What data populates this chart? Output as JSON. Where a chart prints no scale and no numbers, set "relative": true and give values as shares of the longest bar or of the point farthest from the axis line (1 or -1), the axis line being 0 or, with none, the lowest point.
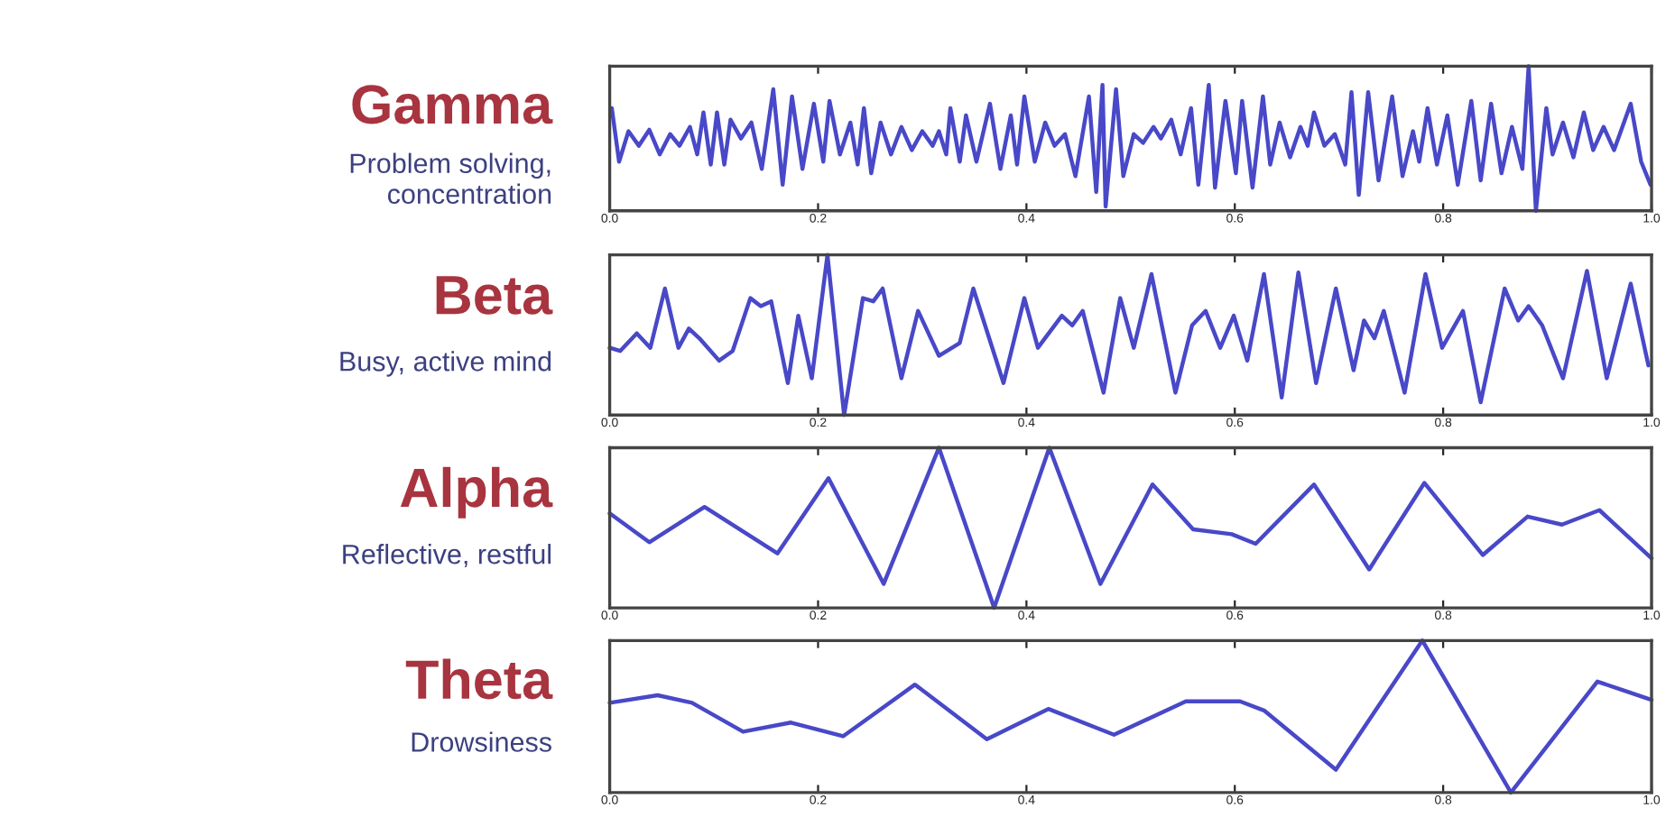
{
  "chart_data": [
    {
      "type": "line",
      "title": "Gamma",
      "subtitle": "Problem solving,\nconcentration",
      "relative": true,
      "tick_labels": "x",
      "xlim": [
        0,
        1
      ],
      "xticks": [
        {
          "value": 0,
          "label": "0.0"
        },
        {
          "value": 0.2,
          "label": "0.2"
        },
        {
          "value": 0.4,
          "label": "0.4"
        },
        {
          "value": 0.6,
          "label": "0.6"
        },
        {
          "value": 0.8,
          "label": "0.8"
        },
        {
          "value": 1,
          "label": "1.0"
        }
      ],
      "x": [
        0.002,
        0.009,
        0.018,
        0.028,
        0.038,
        0.048,
        0.058,
        0.067,
        0.077,
        0.084,
        0.09,
        0.097,
        0.103,
        0.11,
        0.116,
        0.126,
        0.136,
        0.146,
        0.157,
        0.166,
        0.175,
        0.185,
        0.196,
        0.205,
        0.211,
        0.221,
        0.231,
        0.238,
        0.244,
        0.251,
        0.26,
        0.27,
        0.28,
        0.29,
        0.3,
        0.31,
        0.316,
        0.323,
        0.327,
        0.336,
        0.342,
        0.352,
        0.365,
        0.375,
        0.385,
        0.391,
        0.398,
        0.408,
        0.418,
        0.427,
        0.437,
        0.447,
        0.46,
        0.467,
        0.473,
        0.476,
        0.486,
        0.493,
        0.503,
        0.512,
        0.522,
        0.529,
        0.539,
        0.548,
        0.558,
        0.565,
        0.575,
        0.581,
        0.591,
        0.601,
        0.607,
        0.617,
        0.627,
        0.634,
        0.643,
        0.653,
        0.663,
        0.67,
        0.676,
        0.686,
        0.696,
        0.706,
        0.712,
        0.719,
        0.728,
        0.738,
        0.751,
        0.761,
        0.771,
        0.777,
        0.785,
        0.794,
        0.804,
        0.814,
        0.827,
        0.836,
        0.846,
        0.856,
        0.866,
        0.876,
        0.882,
        0.889,
        0.899,
        0.905,
        0.915,
        0.925,
        0.935,
        0.944,
        0.954,
        0.964,
        0.98,
        0.99,
        0.999
      ],
      "series": [
        {
          "color": "#4848c8",
          "values": [
            0.71,
            0.34,
            0.55,
            0.45,
            0.56,
            0.39,
            0.53,
            0.45,
            0.58,
            0.39,
            0.68,
            0.32,
            0.68,
            0.32,
            0.63,
            0.5,
            0.61,
            0.29,
            0.84,
            0.18,
            0.79,
            0.29,
            0.74,
            0.34,
            0.76,
            0.39,
            0.61,
            0.32,
            0.71,
            0.26,
            0.61,
            0.39,
            0.58,
            0.42,
            0.55,
            0.45,
            0.55,
            0.39,
            0.71,
            0.34,
            0.66,
            0.34,
            0.74,
            0.29,
            0.66,
            0.32,
            0.79,
            0.34,
            0.61,
            0.45,
            0.53,
            0.24,
            0.79,
            0.13,
            0.87,
            0.03,
            0.84,
            0.24,
            0.53,
            0.47,
            0.58,
            0.5,
            0.63,
            0.39,
            0.71,
            0.18,
            0.87,
            0.16,
            0.76,
            0.26,
            0.76,
            0.16,
            0.79,
            0.32,
            0.61,
            0.37,
            0.58,
            0.45,
            0.68,
            0.45,
            0.53,
            0.32,
            0.82,
            0.11,
            0.82,
            0.21,
            0.79,
            0.24,
            0.55,
            0.34,
            0.71,
            0.32,
            0.66,
            0.18,
            0.76,
            0.21,
            0.74,
            0.26,
            0.58,
            0.29,
            1.0,
            0.0,
            0.71,
            0.39,
            0.61,
            0.37,
            0.68,
            0.42,
            0.58,
            0.42,
            0.74,
            0.34,
            0.18
          ]
        }
      ]
    },
    {
      "type": "line",
      "title": "Beta",
      "subtitle": "Busy, active mind",
      "relative": true,
      "tick_labels": "x",
      "xlim": [
        0,
        1
      ],
      "xticks": [
        {
          "value": 0,
          "label": "0.0"
        },
        {
          "value": 0.2,
          "label": "0.2"
        },
        {
          "value": 0.4,
          "label": "0.4"
        },
        {
          "value": 0.6,
          "label": "0.6"
        },
        {
          "value": 0.8,
          "label": "0.8"
        },
        {
          "value": 1,
          "label": "1.0"
        }
      ],
      "x": [
        0.0,
        0.01,
        0.026,
        0.039,
        0.053,
        0.066,
        0.076,
        0.086,
        0.105,
        0.118,
        0.135,
        0.145,
        0.155,
        0.171,
        0.181,
        0.194,
        0.209,
        0.225,
        0.243,
        0.253,
        0.262,
        0.28,
        0.296,
        0.316,
        0.336,
        0.349,
        0.378,
        0.398,
        0.411,
        0.434,
        0.444,
        0.454,
        0.474,
        0.49,
        0.503,
        0.52,
        0.543,
        0.559,
        0.572,
        0.586,
        0.599,
        0.612,
        0.628,
        0.645,
        0.661,
        0.678,
        0.697,
        0.714,
        0.724,
        0.734,
        0.743,
        0.763,
        0.783,
        0.799,
        0.819,
        0.836,
        0.859,
        0.872,
        0.882,
        0.895,
        0.915,
        0.938,
        0.957,
        0.98,
        0.997
      ],
      "series": [
        {
          "color": "#4848c8",
          "values": [
            0.42,
            0.4,
            0.51,
            0.42,
            0.79,
            0.42,
            0.54,
            0.48,
            0.34,
            0.4,
            0.73,
            0.68,
            0.71,
            0.2,
            0.62,
            0.23,
            1.0,
            0.0,
            0.73,
            0.71,
            0.79,
            0.23,
            0.65,
            0.37,
            0.45,
            0.79,
            0.2,
            0.73,
            0.42,
            0.62,
            0.56,
            0.65,
            0.14,
            0.73,
            0.42,
            0.88,
            0.14,
            0.56,
            0.65,
            0.42,
            0.62,
            0.34,
            0.88,
            0.11,
            0.89,
            0.2,
            0.79,
            0.28,
            0.59,
            0.48,
            0.65,
            0.14,
            0.88,
            0.42,
            0.65,
            0.08,
            0.79,
            0.59,
            0.68,
            0.56,
            0.23,
            0.9,
            0.23,
            0.82,
            0.31
          ]
        }
      ]
    },
    {
      "type": "line",
      "title": "Alpha",
      "subtitle": "Reflective, restful",
      "relative": true,
      "tick_labels": "x",
      "xlim": [
        0,
        1
      ],
      "xticks": [
        {
          "value": 0,
          "label": "0.0"
        },
        {
          "value": 0.2,
          "label": "0.2"
        },
        {
          "value": 0.4,
          "label": "0.4"
        },
        {
          "value": 0.6,
          "label": "0.6"
        },
        {
          "value": 0.8,
          "label": "0.8"
        },
        {
          "value": 1,
          "label": "1.0"
        }
      ],
      "x": [
        0.0,
        0.038,
        0.091,
        0.161,
        0.21,
        0.263,
        0.316,
        0.369,
        0.422,
        0.471,
        0.521,
        0.56,
        0.597,
        0.62,
        0.676,
        0.729,
        0.782,
        0.838,
        0.881,
        0.914,
        0.95,
        1.0
      ],
      "series": [
        {
          "color": "#4848c8",
          "values": [
            0.59,
            0.41,
            0.63,
            0.34,
            0.81,
            0.15,
            1.0,
            0.0,
            1.0,
            0.15,
            0.77,
            0.49,
            0.46,
            0.4,
            0.77,
            0.24,
            0.78,
            0.33,
            0.57,
            0.52,
            0.61,
            0.31
          ]
        }
      ]
    },
    {
      "type": "line",
      "title": "Theta",
      "subtitle": "Drowsiness",
      "relative": true,
      "tick_labels": "x",
      "xlim": [
        0,
        1
      ],
      "xticks": [
        {
          "value": 0,
          "label": "0.0"
        },
        {
          "value": 0.2,
          "label": "0.2"
        },
        {
          "value": 0.4,
          "label": "0.4"
        },
        {
          "value": 0.6,
          "label": "0.6"
        },
        {
          "value": 0.8,
          "label": "0.8"
        },
        {
          "value": 1,
          "label": "1.0"
        }
      ],
      "x": [
        0.0,
        0.046,
        0.079,
        0.128,
        0.174,
        0.224,
        0.293,
        0.362,
        0.421,
        0.484,
        0.553,
        0.605,
        0.628,
        0.697,
        0.78,
        0.865,
        0.948,
        1.0
      ],
      "series": [
        {
          "color": "#4848c8",
          "values": [
            0.59,
            0.64,
            0.59,
            0.4,
            0.46,
            0.37,
            0.71,
            0.35,
            0.55,
            0.38,
            0.6,
            0.6,
            0.54,
            0.15,
            1.0,
            0.0,
            0.73,
            0.61
          ]
        }
      ]
    }
  ]
}
